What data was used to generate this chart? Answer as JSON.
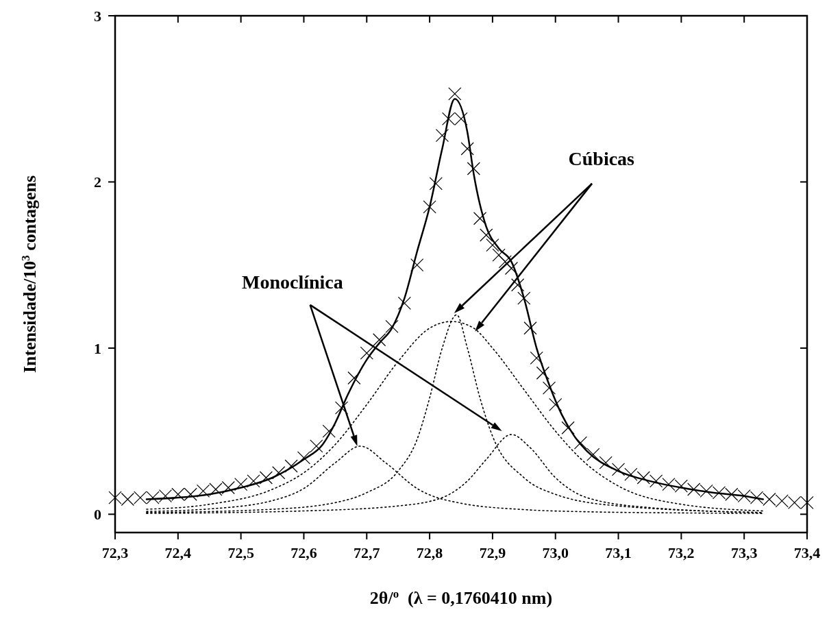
{
  "chart_data": {
    "type": "line",
    "xlabel": "2θ/$^{o}$  (λ = 0,1760410 nm)",
    "ylabel": "Intensidade/10$^{3}$ contagens",
    "annotations": [
      "Monoclínica",
      "Cúbicas"
    ],
    "xlim": [
      72.3,
      73.4
    ],
    "ylim": [
      -0.11,
      3
    ],
    "xticks": [
      {
        "value": 72.3,
        "label": "72,3"
      },
      {
        "value": 72.4,
        "label": "72,4"
      },
      {
        "value": 72.5,
        "label": "72,5"
      },
      {
        "value": 72.6,
        "label": "72,6"
      },
      {
        "value": 72.7,
        "label": "72,7"
      },
      {
        "value": 72.8,
        "label": "72,8"
      },
      {
        "value": 72.9,
        "label": "72,9"
      },
      {
        "value": 73.0,
        "label": "73,0"
      },
      {
        "value": 73.1,
        "label": "73,1"
      },
      {
        "value": 73.2,
        "label": "73,2"
      },
      {
        "value": 73.3,
        "label": "73,3"
      },
      {
        "value": 73.4,
        "label": "73,4"
      }
    ],
    "yticks": [
      0,
      1,
      2,
      3
    ],
    "series": [
      {
        "type": "scatter",
        "marker": "cross",
        "color": "#000000",
        "x": [
          72.3,
          72.32,
          72.34,
          72.36,
          72.38,
          72.4,
          72.42,
          72.44,
          72.46,
          72.48,
          72.5,
          72.52,
          72.54,
          72.56,
          72.58,
          72.6,
          72.62,
          72.64,
          72.66,
          72.68,
          72.7,
          72.72,
          72.74,
          72.76,
          72.78,
          72.8,
          72.81,
          72.82,
          72.83,
          72.84,
          72.85,
          72.86,
          72.87,
          72.88,
          72.89,
          72.9,
          72.91,
          72.92,
          72.93,
          72.94,
          72.95,
          72.96,
          72.97,
          72.98,
          72.99,
          73.0,
          73.02,
          73.04,
          73.06,
          73.08,
          73.1,
          73.12,
          73.14,
          73.16,
          73.18,
          73.2,
          73.22,
          73.24,
          73.26,
          73.28,
          73.3,
          73.32,
          73.34,
          73.36,
          73.38,
          73.4
        ],
        "values": [
          0.1,
          0.09,
          0.1,
          0.1,
          0.11,
          0.12,
          0.12,
          0.14,
          0.15,
          0.16,
          0.18,
          0.2,
          0.22,
          0.25,
          0.29,
          0.34,
          0.41,
          0.5,
          0.64,
          0.82,
          0.97,
          1.05,
          1.13,
          1.27,
          1.5,
          1.85,
          1.99,
          2.28,
          2.38,
          2.53,
          2.38,
          2.2,
          2.08,
          1.78,
          1.68,
          1.62,
          1.56,
          1.52,
          1.48,
          1.38,
          1.3,
          1.12,
          0.94,
          0.85,
          0.76,
          0.66,
          0.52,
          0.43,
          0.36,
          0.31,
          0.27,
          0.24,
          0.22,
          0.2,
          0.18,
          0.17,
          0.15,
          0.14,
          0.13,
          0.12,
          0.11,
          0.1,
          0.09,
          0.08,
          0.07,
          0.07
        ]
      },
      {
        "line_style": "solid",
        "color": "#000000",
        "x": [
          72.35,
          72.4,
          72.45,
          72.5,
          72.55,
          72.6,
          72.63,
          72.65,
          72.67,
          72.7,
          72.72,
          72.74,
          72.76,
          72.78,
          72.8,
          72.82,
          72.84,
          72.86,
          72.87,
          72.89,
          72.91,
          72.93,
          72.95,
          72.97,
          72.99,
          73.01,
          73.03,
          73.05,
          73.1,
          73.15,
          73.2,
          73.25,
          73.3,
          73.33
        ],
        "values": [
          0.09,
          0.1,
          0.12,
          0.16,
          0.22,
          0.33,
          0.42,
          0.55,
          0.72,
          0.93,
          1.03,
          1.12,
          1.3,
          1.58,
          1.85,
          2.2,
          2.5,
          2.3,
          2.05,
          1.73,
          1.6,
          1.52,
          1.3,
          1.0,
          0.78,
          0.6,
          0.47,
          0.38,
          0.26,
          0.2,
          0.16,
          0.13,
          0.11,
          0.09
        ]
      },
      {
        "line_style": "dotted",
        "color": "#000000",
        "x": [
          72.35,
          72.45,
          72.55,
          72.6,
          72.65,
          72.69,
          72.73,
          72.78,
          72.85,
          72.95,
          73.05,
          73.2,
          73.33
        ],
        "values": [
          0.017,
          0.032,
          0.082,
          0.155,
          0.31,
          0.41,
          0.31,
          0.155,
          0.066,
          0.028,
          0.015,
          0.008,
          0.005
        ]
      },
      {
        "line_style": "dotted",
        "color": "#000000",
        "x": [
          72.35,
          72.45,
          72.55,
          72.6,
          72.65,
          72.7,
          72.75,
          72.8,
          72.835,
          72.87,
          72.9,
          72.95,
          73.0,
          73.05,
          73.1,
          73.2,
          73.33
        ],
        "values": [
          0.03,
          0.06,
          0.15,
          0.25,
          0.42,
          0.66,
          0.92,
          1.12,
          1.16,
          1.12,
          1.0,
          0.75,
          0.5,
          0.3,
          0.17,
          0.06,
          0.02
        ]
      },
      {
        "line_style": "dotted",
        "color": "#000000",
        "x": [
          72.35,
          72.55,
          72.65,
          72.7,
          72.75,
          72.78,
          72.8,
          72.82,
          72.843,
          72.86,
          72.88,
          72.9,
          72.95,
          73.0,
          73.1,
          73.33
        ],
        "values": [
          0.01,
          0.03,
          0.07,
          0.13,
          0.26,
          0.45,
          0.7,
          1.0,
          1.2,
          1.0,
          0.7,
          0.47,
          0.22,
          0.12,
          0.05,
          0.01
        ]
      },
      {
        "line_style": "dotted",
        "color": "#000000",
        "x": [
          72.35,
          72.6,
          72.75,
          72.82,
          72.86,
          72.89,
          72.93,
          72.96,
          73.0,
          73.05,
          73.15,
          73.33
        ],
        "values": [
          0.005,
          0.02,
          0.05,
          0.1,
          0.2,
          0.33,
          0.48,
          0.4,
          0.22,
          0.1,
          0.04,
          0.01
        ]
      }
    ]
  }
}
